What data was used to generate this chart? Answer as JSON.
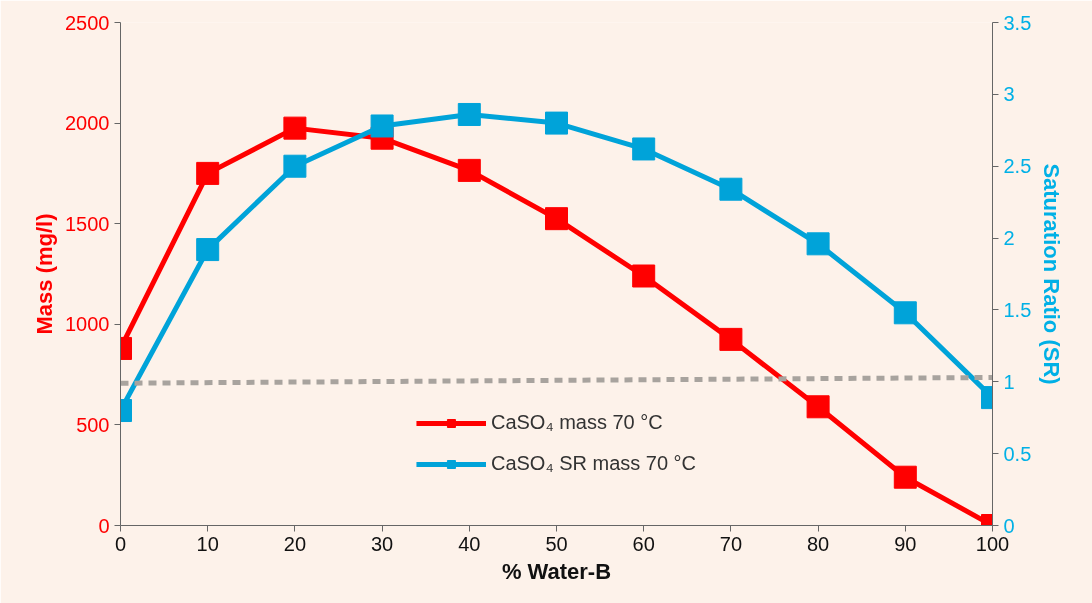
{
  "chart_data": {
    "type": "line",
    "xlabel": "% Water-B",
    "ylabel": "Mass (mg/l)",
    "y2label": "Saturation Ratio (SR)",
    "x": [
      0,
      10,
      20,
      30,
      40,
      50,
      60,
      70,
      80,
      90,
      100
    ],
    "series": [
      {
        "name": "CaSO₄ mass 70 °C",
        "color": "#ff0000",
        "values": [
          880,
          1750,
          1975,
          1925,
          1765,
          1525,
          1240,
          925,
          590,
          240,
          0
        ]
      },
      {
        "name": "CaSO₄ SR mass 70 °C",
        "color": "#00a3d9",
        "axis": "y2",
        "values": [
          0.8,
          1.92,
          2.5,
          2.78,
          2.86,
          2.8,
          2.62,
          2.34,
          1.96,
          1.48,
          0.89
        ]
      },
      {
        "type": "line",
        "color": "#a8a39e",
        "axis": "y2",
        "x": [
          0,
          100
        ],
        "values": [
          0.99,
          1.03
        ],
        "line_style": "dashed",
        "marker": "none"
      }
    ],
    "xlim": [
      0,
      100
    ],
    "xticks": [
      0,
      10,
      20,
      30,
      40,
      50,
      60,
      70,
      80,
      90,
      100
    ],
    "ylim": [
      0,
      2500
    ],
    "yticks": [
      0,
      500,
      1000,
      1500,
      2000,
      2500
    ],
    "y2lim": [
      0,
      3.5
    ],
    "y2ticks": [
      0,
      0.5,
      1,
      1.5,
      2,
      2.5,
      3,
      3.5
    ],
    "marker": "square",
    "line_style": "solid",
    "grid": false,
    "legend": "bottom"
  }
}
